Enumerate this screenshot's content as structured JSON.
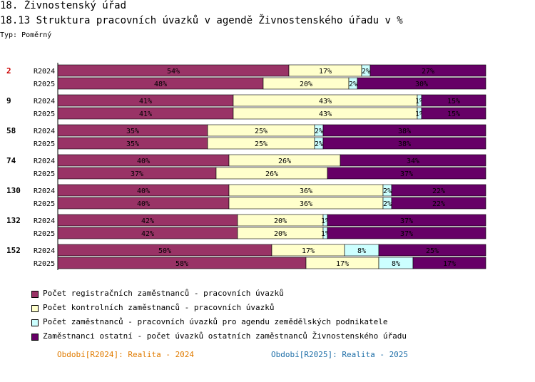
{
  "header": {
    "title": "18. Živnostenský úřad",
    "subtitle": "18.13 Struktura pracovních úvazků v agendě Živnostenského úřadu v %",
    "type_label": "Typ: Poměrný"
  },
  "chart_data": {
    "type": "bar",
    "orientation": "horizontal",
    "stacked": true,
    "percent": true,
    "groups": [
      {
        "id": "2",
        "highlight": true,
        "rows": [
          {
            "period": "R2024",
            "values": [
              54,
              17,
              2,
              27
            ],
            "labels": [
              "54%",
              "17%",
              "2%",
              "27%"
            ]
          },
          {
            "period": "R2025",
            "values": [
              48,
              20,
              2,
              30
            ],
            "labels": [
              "48%",
              "20%",
              "2%",
              "30%"
            ]
          }
        ]
      },
      {
        "id": "9",
        "highlight": false,
        "rows": [
          {
            "period": "R2024",
            "values": [
              41,
              43,
              1,
              15
            ],
            "labels": [
              "41%",
              "43%",
              "1%",
              "15%"
            ]
          },
          {
            "period": "R2025",
            "values": [
              41,
              43,
              1,
              15
            ],
            "labels": [
              "41%",
              "43%",
              "1%",
              "15%"
            ]
          }
        ]
      },
      {
        "id": "58",
        "highlight": false,
        "rows": [
          {
            "period": "R2024",
            "values": [
              35,
              25,
              2,
              38
            ],
            "labels": [
              "35%",
              "25%",
              "2%",
              "38%"
            ]
          },
          {
            "period": "R2025",
            "values": [
              35,
              25,
              2,
              38
            ],
            "labels": [
              "35%",
              "25%",
              "2%",
              "38%"
            ]
          }
        ]
      },
      {
        "id": "74",
        "highlight": false,
        "rows": [
          {
            "period": "R2024",
            "values": [
              40,
              26,
              0,
              34
            ],
            "labels": [
              "40%",
              "26%",
              "",
              "34%"
            ]
          },
          {
            "period": "R2025",
            "values": [
              37,
              26,
              0,
              37
            ],
            "labels": [
              "37%",
              "26%",
              "",
              "37%"
            ]
          }
        ]
      },
      {
        "id": "130",
        "highlight": false,
        "rows": [
          {
            "period": "R2024",
            "values": [
              40,
              36,
              2,
              22
            ],
            "labels": [
              "40%",
              "36%",
              "2%",
              "22%"
            ]
          },
          {
            "period": "R2025",
            "values": [
              40,
              36,
              2,
              22
            ],
            "labels": [
              "40%",
              "36%",
              "2%",
              "22%"
            ]
          }
        ]
      },
      {
        "id": "132",
        "highlight": false,
        "rows": [
          {
            "period": "R2024",
            "values": [
              42,
              20,
              1,
              37
            ],
            "labels": [
              "42%",
              "20%",
              "1%",
              "37%"
            ]
          },
          {
            "period": "R2025",
            "values": [
              42,
              20,
              1,
              37
            ],
            "labels": [
              "42%",
              "20%",
              "1%",
              "37%"
            ]
          }
        ]
      },
      {
        "id": "152",
        "highlight": false,
        "rows": [
          {
            "period": "R2024",
            "values": [
              50,
              17,
              8,
              25
            ],
            "labels": [
              "50%",
              "17%",
              "8%",
              "25%"
            ]
          },
          {
            "period": "R2025",
            "values": [
              58,
              17,
              8,
              17
            ],
            "labels": [
              "58%",
              "17%",
              "8%",
              "17%"
            ]
          }
        ]
      }
    ],
    "series": [
      {
        "name": "Počet registračních zaměstnanců - pracovních úvazků",
        "color": "#993366"
      },
      {
        "name": "Počet kontrolních zaměstnanců - pracovních úvazků",
        "color": "#ffffcc"
      },
      {
        "name": "Počet zaměstnanců - pracovních úvazků pro agendu zemědělských podnikatele",
        "color": "#ccffff"
      },
      {
        "name": "Zaměstnanci ostatní - počet úvazků ostatních zaměstnanců Živnostenského úřadu",
        "color": "#660066"
      }
    ],
    "xlim": [
      0,
      100
    ],
    "highlight_color": "#cc0000"
  },
  "footer": {
    "period_2024": "Období[R2024]: Realita - 2024",
    "period_2025": "Období[R2025]: Realita - 2025"
  }
}
